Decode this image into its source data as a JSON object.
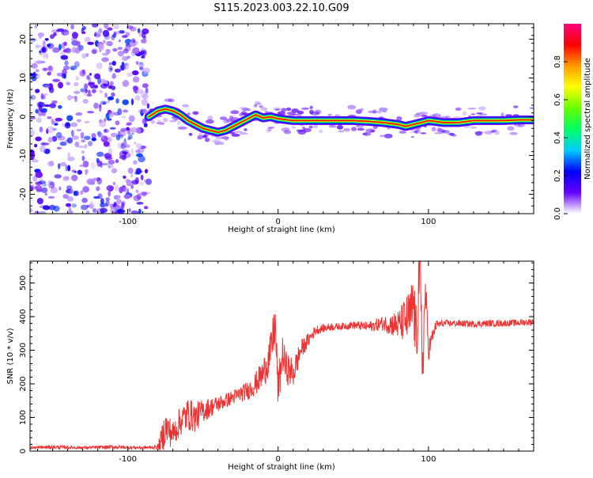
{
  "title": "S115.2023.003.22.10.G09",
  "chart_data": [
    {
      "type": "heatmap",
      "name_id": "spectrogram",
      "xlabel": "Height of straight line (km)",
      "ylabel": "Frequency (Hz)",
      "xlim": [
        -165,
        170
      ],
      "ylim": [
        -25,
        24
      ],
      "xticks": [
        -100,
        0,
        100
      ],
      "xtick_labels": [
        "-100",
        "0",
        "100"
      ],
      "yticks": [
        -20,
        -10,
        0,
        10,
        20
      ],
      "ytick_labels": [
        "-20",
        "-10",
        "0",
        "10",
        "20"
      ],
      "noise_region_x": [
        -165,
        -86
      ],
      "ridge": {
        "x": [
          -86,
          -80,
          -75,
          -70,
          -65,
          -60,
          -55,
          -50,
          -45,
          -40,
          -35,
          -30,
          -25,
          -20,
          -15,
          -10,
          -5,
          0,
          10,
          20,
          30,
          40,
          50,
          60,
          70,
          80,
          85,
          90,
          95,
          100,
          110,
          120,
          130,
          140,
          150,
          160,
          170
        ],
        "y": [
          0.0,
          1.5,
          2.0,
          1.5,
          0.5,
          -1.0,
          -2.0,
          -3.0,
          -3.5,
          -4.0,
          -3.5,
          -2.5,
          -1.5,
          -0.5,
          0.5,
          -0.3,
          0.0,
          -0.5,
          -1.0,
          -1.0,
          -1.0,
          -1.0,
          -1.0,
          -1.2,
          -1.5,
          -2.0,
          -2.5,
          -2.0,
          -1.5,
          -1.0,
          -1.5,
          -1.5,
          -1.0,
          -1.0,
          -1.0,
          -0.8,
          -0.8
        ]
      },
      "colorbar": {
        "label": "Normalized spectral amplitude",
        "range": [
          0,
          1
        ],
        "ticks": [
          0.0,
          0.2,
          0.4,
          0.6,
          0.8
        ],
        "tick_labels": [
          "0.0",
          "0.2",
          "0.4",
          "0.6",
          "0.8"
        ],
        "colors": [
          "#ffffff",
          "#6600ff",
          "#0000ff",
          "#00ccff",
          "#00ff66",
          "#66ff00",
          "#ffff00",
          "#ff9900",
          "#ff0000",
          "#ff0080"
        ]
      }
    },
    {
      "type": "line",
      "name_id": "snr",
      "xlabel": "Height of straight line (km)",
      "ylabel": "SNR (10 * v/v)",
      "xlim": [
        -165,
        170
      ],
      "ylim": [
        0,
        565
      ],
      "xticks": [
        -100,
        0,
        100
      ],
      "xtick_labels": [
        "-100",
        "0",
        "100"
      ],
      "yticks": [
        0,
        100,
        200,
        300,
        400,
        500
      ],
      "ytick_labels": [
        "0",
        "100",
        "200",
        "300",
        "400",
        "500"
      ],
      "line_color": "#ee3333",
      "series": [
        {
          "x": [
            -165,
            -150,
            -130,
            -110,
            -90,
            -80,
            -77,
            -75,
            -70,
            -65,
            -60,
            -55,
            -50,
            -45,
            -40,
            -35,
            -30,
            -25,
            -20,
            -15,
            -10,
            -5,
            -2,
            0,
            3,
            5,
            10,
            15,
            20,
            25,
            30,
            35,
            40,
            50,
            60,
            70,
            80,
            85,
            88,
            90,
            92,
            94,
            96,
            98,
            100,
            105,
            110,
            120,
            130,
            140,
            150,
            160,
            170
          ],
          "y": [
            10,
            12,
            10,
            12,
            10,
            12,
            40,
            70,
            50,
            90,
            110,
            100,
            120,
            130,
            140,
            150,
            160,
            170,
            180,
            200,
            230,
            290,
            380,
            180,
            290,
            250,
            230,
            300,
            330,
            360,
            365,
            370,
            370,
            375,
            370,
            380,
            375,
            390,
            400,
            440,
            320,
            560,
            250,
            480,
            300,
            375,
            380,
            380,
            378,
            380,
            380,
            382,
            385
          ],
          "noise": [
            4,
            6,
            4,
            6,
            4,
            6,
            45,
            55,
            40,
            45,
            50,
            45,
            35,
            30,
            25,
            22,
            22,
            25,
            28,
            35,
            45,
            60,
            70,
            60,
            55,
            50,
            45,
            30,
            20,
            15,
            12,
            12,
            10,
            12,
            15,
            22,
            45,
            70,
            90,
            100,
            100,
            120,
            100,
            70,
            35,
            15,
            10,
            10,
            10,
            10,
            10,
            10,
            10
          ]
        }
      ]
    }
  ]
}
